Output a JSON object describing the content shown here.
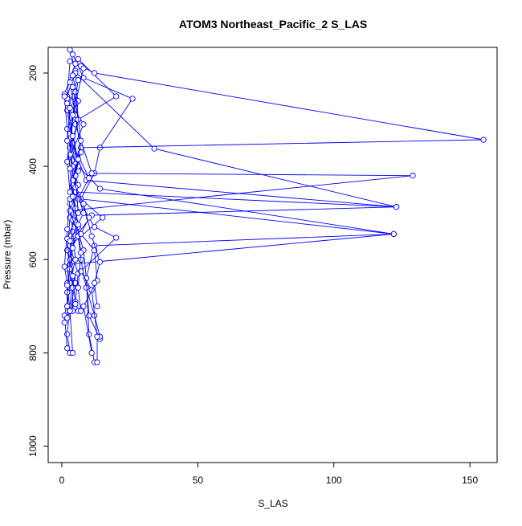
{
  "chart_data": {
    "type": "line",
    "title": "ATOM3 Northeast_Pacific_2 S_LAS",
    "xlabel": "S_LAS",
    "ylabel": "Pressure (mbar)",
    "xlim": [
      -5,
      160
    ],
    "ylim": [
      1035,
      145
    ],
    "y_inverted": true,
    "x_ticks": [
      0,
      50,
      100,
      150
    ],
    "x_tick_labels": [
      "0",
      "50",
      "100",
      "150"
    ],
    "y_ticks": [
      200,
      400,
      600,
      800,
      1000
    ],
    "y_tick_labels": [
      "200",
      "400",
      "600",
      "800",
      "1000"
    ],
    "grid": false,
    "legend": "none",
    "marker": "open-circle",
    "line_color": "#0000ff",
    "series": [
      {
        "points": [
          [
            3,
            150
          ],
          [
            5,
            195
          ],
          [
            2,
            250
          ],
          [
            4,
            305
          ],
          [
            3,
            360
          ],
          [
            6,
            410
          ],
          [
            4,
            460
          ],
          [
            3,
            510
          ],
          [
            2,
            580
          ],
          [
            4,
            640
          ],
          [
            3,
            700
          ],
          [
            2,
            760
          ],
          [
            3,
            800
          ]
        ]
      },
      {
        "points": [
          [
            4,
            160
          ],
          [
            8,
            210
          ],
          [
            26,
            255
          ],
          [
            14,
            360
          ],
          [
            12,
            415
          ],
          [
            7,
            470
          ],
          [
            122,
            545
          ],
          [
            3,
            610
          ],
          [
            5,
            650
          ],
          [
            3,
            710
          ],
          [
            4,
            800
          ]
        ]
      },
      {
        "points": [
          [
            6,
            170
          ],
          [
            20,
            250
          ],
          [
            6,
            300
          ],
          [
            4,
            355
          ],
          [
            9,
            430
          ],
          [
            123,
            487
          ],
          [
            11,
            505
          ],
          [
            4,
            560
          ],
          [
            2,
            620
          ],
          [
            3,
            660
          ],
          [
            1,
            720
          ],
          [
            2,
            790
          ]
        ]
      },
      {
        "points": [
          [
            3,
            175
          ],
          [
            2,
            255
          ],
          [
            8,
            310
          ],
          [
            3,
            380
          ],
          [
            6,
            440
          ],
          [
            4,
            455
          ],
          [
            15,
            510
          ],
          [
            3,
            570
          ],
          [
            6,
            630
          ],
          [
            5,
            690
          ],
          [
            6,
            710
          ]
        ]
      },
      {
        "points": [
          [
            5,
            180
          ],
          [
            1,
            245
          ],
          [
            5,
            260
          ],
          [
            3,
            330
          ],
          [
            5,
            395
          ],
          [
            4,
            450
          ],
          [
            5,
            520
          ],
          [
            8,
            580
          ],
          [
            9,
            640
          ],
          [
            10,
            720
          ],
          [
            14,
            770
          ]
        ]
      },
      {
        "points": [
          [
            7,
            185
          ],
          [
            12,
            200
          ],
          [
            155,
            343
          ],
          [
            7,
            360
          ],
          [
            5,
            420
          ],
          [
            3,
            480
          ],
          [
            4,
            540
          ],
          [
            5,
            600
          ],
          [
            3,
            650
          ],
          [
            2,
            700
          ]
        ]
      },
      {
        "points": [
          [
            5,
            200
          ],
          [
            34,
            362
          ],
          [
            123,
            487
          ],
          [
            5,
            455
          ],
          [
            4,
            515
          ],
          [
            3,
            600
          ],
          [
            4,
            660
          ],
          [
            4,
            710
          ]
        ]
      },
      {
        "points": [
          [
            4,
            205
          ],
          [
            6,
            260
          ],
          [
            5,
            310
          ],
          [
            11,
            415
          ],
          [
            129,
            420
          ],
          [
            3,
            495
          ],
          [
            6,
            550
          ],
          [
            7,
            600
          ],
          [
            9,
            660
          ],
          [
            12,
            720
          ],
          [
            14,
            765
          ]
        ]
      },
      {
        "points": [
          [
            6,
            210
          ],
          [
            2,
            280
          ],
          [
            4,
            350
          ],
          [
            6,
            400
          ],
          [
            14,
            448
          ],
          [
            122,
            545
          ],
          [
            12,
            570
          ],
          [
            9,
            640
          ],
          [
            10,
            760
          ],
          [
            12,
            820
          ]
        ]
      },
      {
        "points": [
          [
            8,
            190
          ],
          [
            5,
            265
          ],
          [
            3,
            340
          ],
          [
            10,
            425
          ],
          [
            6,
            470
          ],
          [
            12,
            530
          ],
          [
            20,
            553
          ],
          [
            7,
            625
          ],
          [
            11,
            665
          ],
          [
            13,
            765
          ],
          [
            13,
            820
          ]
        ]
      },
      {
        "points": [
          [
            3,
            220
          ],
          [
            5,
            290
          ],
          [
            7,
            370
          ],
          [
            4,
            440
          ],
          [
            5,
            490
          ],
          [
            10,
            510
          ],
          [
            7,
            545
          ],
          [
            12,
            580
          ],
          [
            13,
            645
          ],
          [
            8,
            700
          ],
          [
            11,
            800
          ]
        ]
      },
      {
        "points": [
          [
            1,
            250
          ],
          [
            2,
            320
          ],
          [
            4,
            400
          ],
          [
            3,
            470
          ],
          [
            2,
            535
          ],
          [
            1,
            615
          ],
          [
            2,
            650
          ],
          [
            3,
            710
          ],
          [
            1,
            735
          ]
        ]
      },
      {
        "points": [
          [
            4,
            230
          ],
          [
            6,
            300
          ],
          [
            2,
            390
          ],
          [
            3,
            455
          ],
          [
            5,
            490
          ],
          [
            6,
            530
          ],
          [
            7,
            585
          ],
          [
            6,
            660
          ],
          [
            7,
            710
          ]
        ]
      },
      {
        "points": [
          [
            5,
            240
          ],
          [
            7,
            345
          ],
          [
            5,
            420
          ],
          [
            6,
            500
          ],
          [
            2,
            555
          ],
          [
            3,
            620
          ],
          [
            2,
            670
          ],
          [
            2,
            725
          ]
        ]
      },
      {
        "points": [
          [
            6,
            215
          ],
          [
            4,
            290
          ],
          [
            3,
            375
          ],
          [
            5,
            445
          ],
          [
            8,
            500
          ],
          [
            3,
            560
          ],
          [
            4,
            635
          ],
          [
            5,
            695
          ],
          [
            3,
            710
          ]
        ]
      },
      {
        "points": [
          [
            2,
            265
          ],
          [
            4,
            335
          ],
          [
            6,
            385
          ],
          [
            4,
            430
          ],
          [
            8,
            480
          ],
          [
            11,
            550
          ],
          [
            14,
            605
          ],
          [
            12,
            650
          ],
          [
            13,
            700
          ]
        ]
      },
      {
        "points": [
          [
            3,
            275
          ],
          [
            2,
            345
          ],
          [
            3,
            405
          ],
          [
            4,
            465
          ],
          [
            6,
            525
          ],
          [
            4,
            575
          ],
          [
            2,
            655
          ],
          [
            2,
            700
          ]
        ]
      }
    ]
  }
}
